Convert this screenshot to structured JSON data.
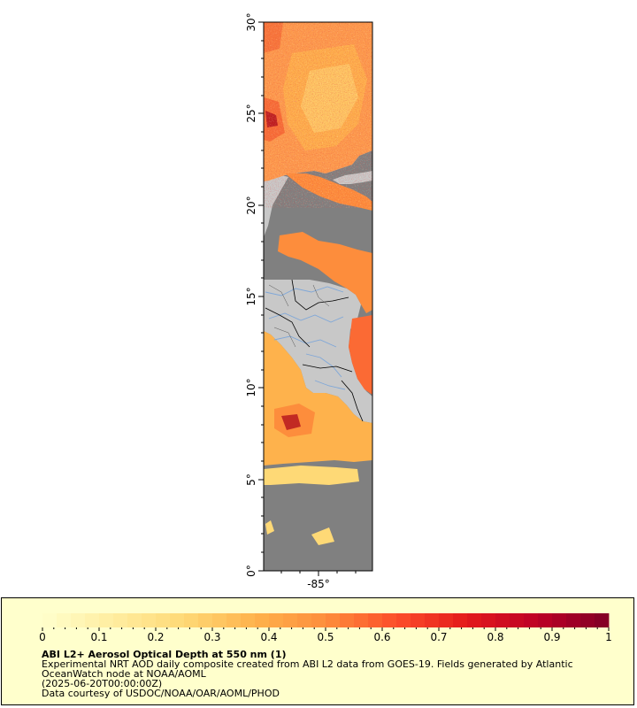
{
  "map": {
    "y_axis": {
      "ticks": [
        "0°",
        "5°",
        "10°",
        "15°",
        "20°",
        "25°",
        "30°"
      ],
      "range": [
        0,
        30
      ]
    },
    "x_axis": {
      "ticks": [
        "-85°"
      ]
    },
    "colors": {
      "land": "#c8c8c8",
      "ocean_nodata": "#808080",
      "rivers": "#7fa7d8",
      "borders": "#000000"
    }
  },
  "colorbar": {
    "ticks": [
      "0",
      "0.1",
      "0.2",
      "0.3",
      "0.4",
      "0.5",
      "0.6",
      "0.7",
      "0.8",
      "0.9",
      "1"
    ],
    "range": [
      0,
      1
    ],
    "colors": [
      "#ffffcc",
      "#ffeda0",
      "#fed976",
      "#feb24c",
      "#fd8d3c",
      "#fc4e2a",
      "#e31a1c",
      "#bd0026",
      "#800026"
    ]
  },
  "legend": {
    "title": "ABI L2+ Aerosol Optical Depth at 550 nm (1)",
    "line1": "Experimental NRT AOD daily composite created from ABI L2 data from GOES-19. Fields generated by Atlantic",
    "line2": "OceanWatch node at NOAA/AOML",
    "line3": "(2025-06-20T00:00:00Z)",
    "line4": "Data courtesy of USDOC/NOAA/OAR/AOML/PHOD"
  }
}
